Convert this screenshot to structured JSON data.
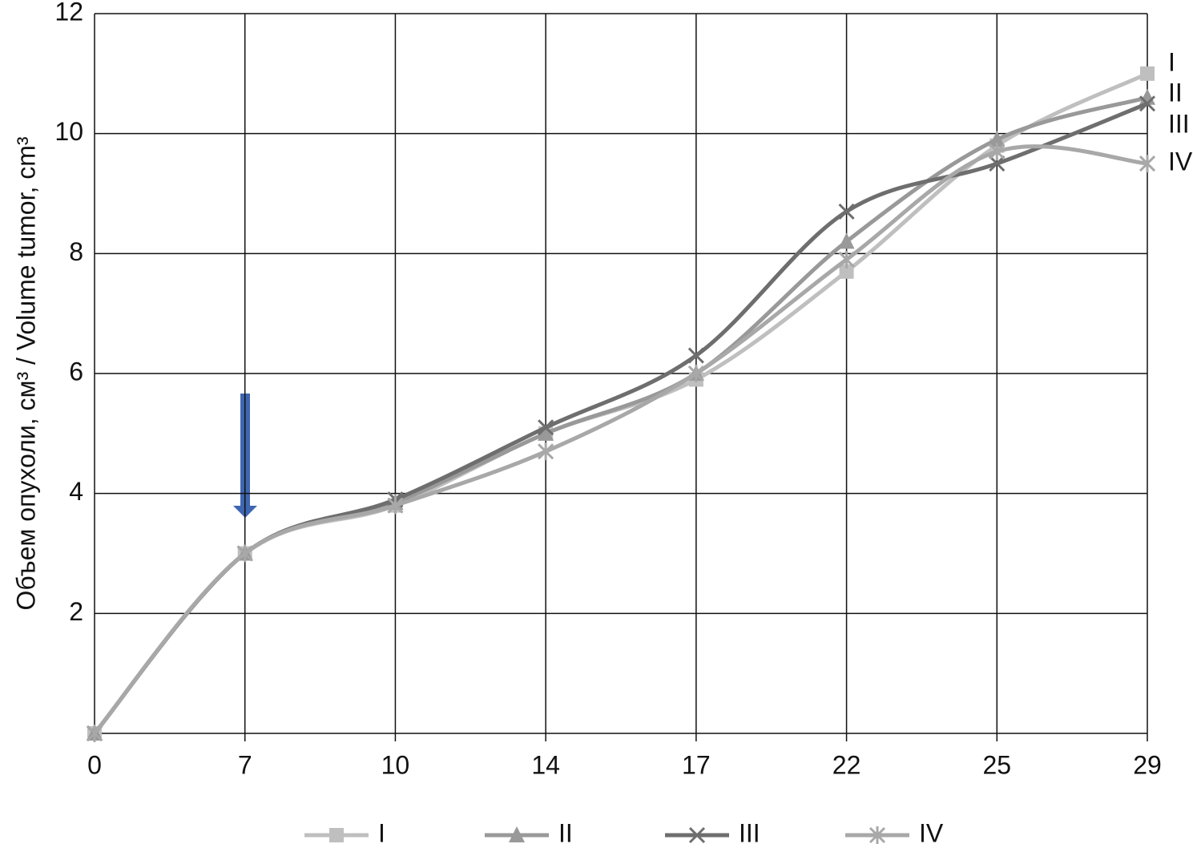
{
  "chart_data": {
    "type": "line",
    "y_label": "Объем опухоли, см³ / Volume tumor, cm³",
    "categories": [
      "0",
      "7",
      "10",
      "14",
      "17",
      "22",
      "25",
      "29"
    ],
    "series": [
      {
        "name": "I",
        "color": "#bfbfbf",
        "marker": "square",
        "values": [
          0,
          3,
          3.8,
          5.0,
          5.9,
          7.7,
          9.8,
          11
        ]
      },
      {
        "name": "II",
        "color": "#999999",
        "marker": "triangle",
        "values": [
          0,
          3,
          3.85,
          5.0,
          6.0,
          8.2,
          9.9,
          10.6
        ]
      },
      {
        "name": "III",
        "color": "#6e6e6e",
        "marker": "x",
        "values": [
          0,
          3,
          3.9,
          5.1,
          6.3,
          8.7,
          9.5,
          10.5
        ]
      },
      {
        "name": "IV",
        "color": "#a8a8a8",
        "marker": "asterisk",
        "values": [
          0,
          3,
          3.8,
          4.7,
          6.0,
          7.9,
          9.7,
          9.5
        ]
      }
    ],
    "ylim": [
      0,
      12
    ],
    "yticks": [
      2,
      4,
      6,
      8,
      10,
      12
    ],
    "grid": true,
    "smooth": true
  }
}
